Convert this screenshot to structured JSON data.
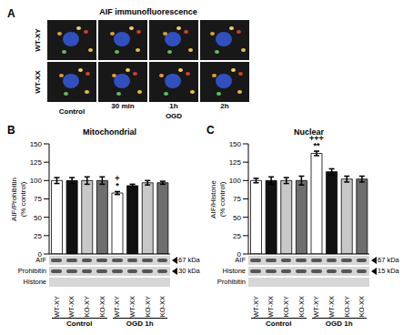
{
  "panel_A": {
    "label": "A",
    "title": "AIF immunofluorescence",
    "rows": [
      "WT-XY",
      "WT-XX"
    ],
    "columns": [
      "Control",
      "30 min",
      "1h",
      "2h"
    ],
    "column_group": "OGD"
  },
  "chart_data": [
    {
      "type": "bar",
      "panel_label": "B",
      "title": "Mitochondrial",
      "ylabel": "AIF/Prohibitin\n(% control)",
      "categories": [
        "WT-XY",
        "WT-XX",
        "KO-XY",
        "KO-XX",
        "WT-XY",
        "WT-XX",
        "KO-XY",
        "KO-XX"
      ],
      "group_labels": [
        "Control",
        "OGD 1h"
      ],
      "values": [
        100,
        100,
        100,
        100,
        83,
        93,
        97,
        97
      ],
      "errors": [
        4,
        4,
        5,
        5,
        2,
        2,
        3,
        2
      ],
      "colors": [
        "#ffffff",
        "#111111",
        "#c8c8c8",
        "#6e6e6e",
        "#ffffff",
        "#111111",
        "#c8c8c8",
        "#6e6e6e"
      ],
      "annotations": [
        null,
        null,
        null,
        null,
        [
          "+",
          "*"
        ],
        null,
        null,
        null
      ],
      "ylim": [
        0,
        150
      ],
      "yticks": [
        0,
        25,
        50,
        75,
        100,
        125,
        150
      ],
      "blot": [
        {
          "label": "AIF",
          "band": "67 kDa"
        },
        {
          "label": "Prohibitin",
          "band": "30 kDa"
        },
        {
          "label": "Histone"
        }
      ]
    },
    {
      "type": "bar",
      "panel_label": "C",
      "title": "Nuclear",
      "ylabel": "AIF/Histone\n(% control)",
      "categories": [
        "WT-XY",
        "WT-XX",
        "KO-XY",
        "KO-XX",
        "WT-XY",
        "WT-XX",
        "KO-XY",
        "KO-XX"
      ],
      "group_labels": [
        "Control",
        "OGD 1h"
      ],
      "values": [
        100,
        100,
        100,
        100,
        137,
        112,
        102,
        102
      ],
      "errors": [
        3,
        5,
        4,
        6,
        3,
        4,
        4,
        4
      ],
      "colors": [
        "#ffffff",
        "#111111",
        "#c8c8c8",
        "#6e6e6e",
        "#ffffff",
        "#111111",
        "#c8c8c8",
        "#6e6e6e"
      ],
      "annotations": [
        null,
        null,
        null,
        null,
        [
          "+++",
          "**"
        ],
        null,
        null,
        null
      ],
      "ylim": [
        0,
        150
      ],
      "yticks": [
        0,
        25,
        50,
        75,
        100,
        125,
        150
      ],
      "blot": [
        {
          "label": "AIF",
          "band": "67 kDa"
        },
        {
          "label": "Histone",
          "band": "15 kDa"
        },
        {
          "label": "Prohibitin"
        }
      ]
    }
  ]
}
